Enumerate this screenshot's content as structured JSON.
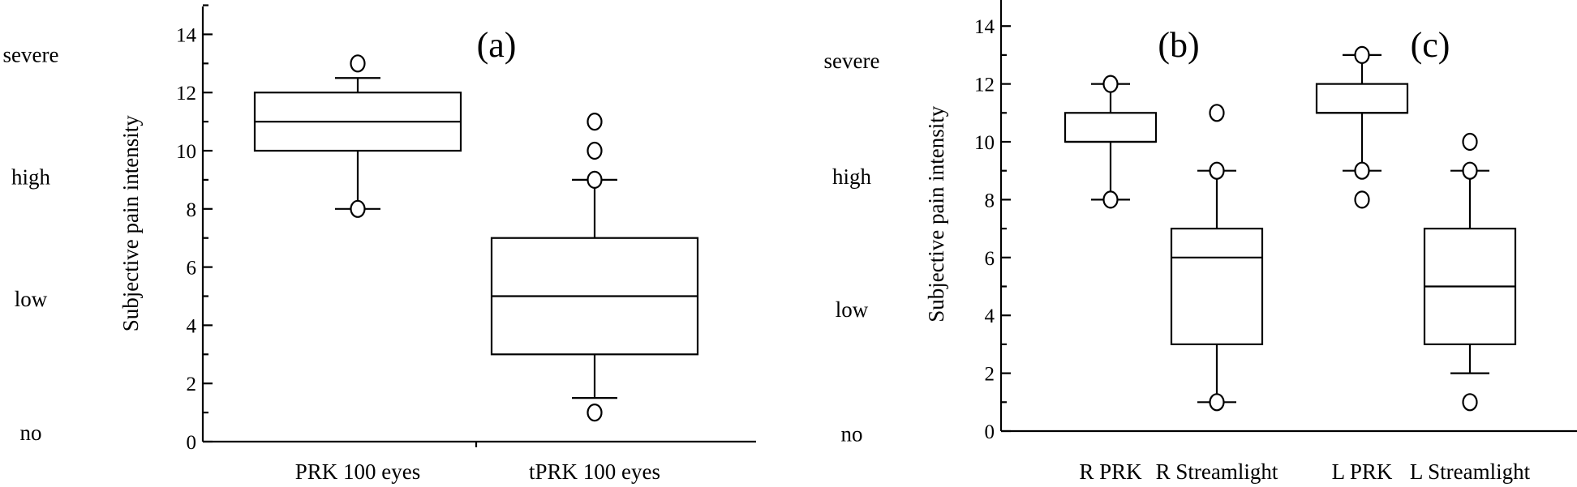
{
  "chart_data": [
    {
      "type": "box",
      "panel_labels": [
        "(a)"
      ],
      "ylabel": "Subjective pain intensity",
      "ylim": [
        0,
        15
      ],
      "yticks": [
        0,
        2,
        4,
        6,
        8,
        10,
        12,
        14
      ],
      "level_labels": [
        {
          "text": "severe",
          "y": 13.3
        },
        {
          "text": "high",
          "y": 9.1
        },
        {
          "text": "low",
          "y": 4.9
        },
        {
          "text": "no",
          "y": 0.3
        }
      ],
      "categories": [
        "PRK 100 eyes",
        "tPRK 100 eyes"
      ],
      "boxes": [
        {
          "name": "PRK 100 eyes",
          "whisker_low": 8,
          "q1": 10,
          "median": 11,
          "q3": 12,
          "whisker_high": 12.5,
          "outliers": [
            8,
            13
          ]
        },
        {
          "name": "tPRK 100 eyes",
          "whisker_low": 1.5,
          "q1": 3,
          "median": 5,
          "q3": 7,
          "whisker_high": 9,
          "outliers": [
            1,
            9,
            10,
            11
          ]
        }
      ]
    },
    {
      "type": "box",
      "panel_labels": [
        "(b)",
        "(c)"
      ],
      "ylabel": "Subjective pain intensity",
      "ylim": [
        0,
        15
      ],
      "yticks": [
        0,
        2,
        4,
        6,
        8,
        10,
        12,
        14
      ],
      "level_labels": [
        {
          "text": "severe",
          "y": 12.8
        },
        {
          "text": "high",
          "y": 8.8
        },
        {
          "text": "low",
          "y": 4.2
        },
        {
          "text": "no",
          "y": -0.1
        }
      ],
      "categories": [
        "R PRK",
        "R Streamlight",
        "L PRK",
        "L Streamlight"
      ],
      "boxes": [
        {
          "name": "R PRK",
          "whisker_low": 8,
          "q1": 10,
          "median": 10,
          "q3": 11,
          "whisker_high": 12,
          "outliers": [
            8,
            12
          ]
        },
        {
          "name": "R Streamlight",
          "whisker_low": 1,
          "q1": 3,
          "median": 6,
          "q3": 7,
          "whisker_high": 9,
          "outliers": [
            1,
            9,
            11
          ]
        },
        {
          "name": "L PRK",
          "whisker_low": 9,
          "q1": 11,
          "median": 11,
          "q3": 12,
          "whisker_high": 13,
          "outliers": [
            8,
            9,
            13
          ]
        },
        {
          "name": "L Streamlight",
          "whisker_low": 2,
          "q1": 3,
          "median": 5,
          "q3": 7,
          "whisker_high": 9,
          "outliers": [
            1,
            9,
            10
          ]
        }
      ]
    }
  ]
}
